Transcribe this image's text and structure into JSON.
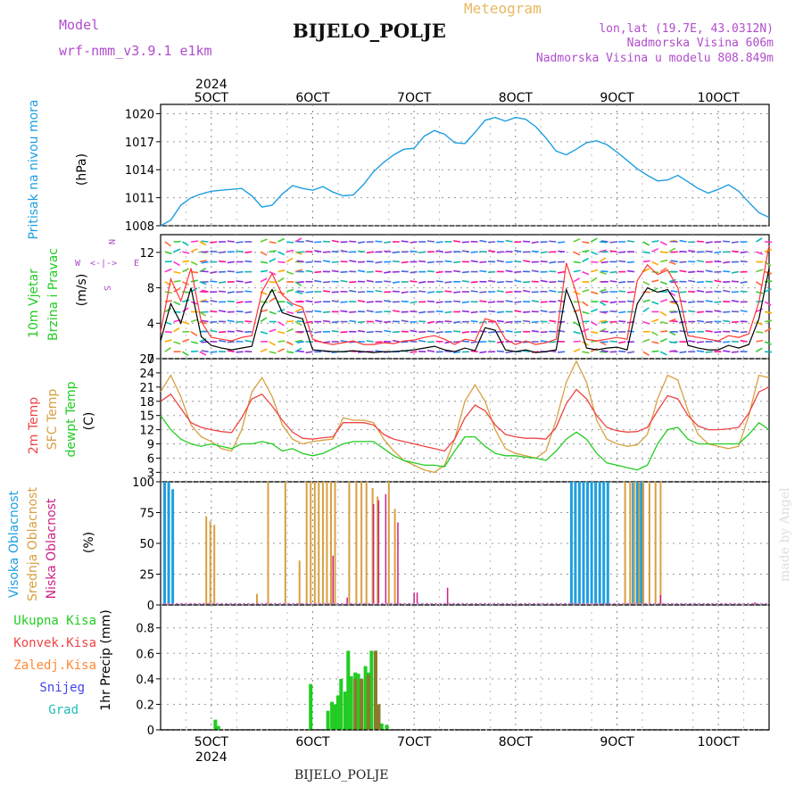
{
  "header": {
    "model_label": "Model",
    "model_name": "wrf-nmm_v3.9.1  e1km",
    "station": "BIJELO_POLJE",
    "meteogram_label": "Meteogram",
    "lonlat": "lon,lat (19.7E, 43.0312N)",
    "altitude": "Nadmorska Visina 606m",
    "model_altitude": "Nadmorska Visina u modelu 808.849m",
    "watermark": "made by Angel",
    "footer_station": "BIJELO_POLJE"
  },
  "colors": {
    "pressure": "#1e9fe0",
    "temp2m": "#ee4444",
    "sfc_temp": "#d8a040",
    "dewpoint": "#22cc22",
    "high_cloud": "#1e9fe0",
    "mid_cloud": "#d8a040",
    "low_cloud": "#cc2288",
    "total_precip": "#22cc22",
    "conv_precip": "#ee4444",
    "frozen_precip": "#ff8833",
    "snow": "#4444ee",
    "graupel": "#22bbbb",
    "header_purple": "#b04ccc",
    "header_orange": "#e8b860"
  },
  "chart_data": [
    {
      "type": "line",
      "panel": "pressure",
      "ylabel": [
        "Pritisak na nivou mora",
        "(hPa)"
      ],
      "ylim": [
        1008,
        1021
      ],
      "yticks": [
        1008,
        1011,
        1014,
        1017,
        1020
      ],
      "x_day_ticks": [
        "5OCT",
        "6OCT",
        "7OCT",
        "8OCT",
        "9OCT",
        "10OCT"
      ],
      "x_top_year": "2024",
      "x": [
        4.5,
        4.6,
        4.7,
        4.8,
        4.9,
        5.0,
        5.1,
        5.2,
        5.3,
        5.4,
        5.5,
        5.6,
        5.7,
        5.8,
        5.9,
        6.0,
        6.1,
        6.2,
        6.3,
        6.4,
        6.5,
        6.6,
        6.7,
        6.8,
        6.9,
        7.0,
        7.1,
        7.2,
        7.3,
        7.4,
        7.5,
        7.6,
        7.7,
        7.8,
        7.9,
        8.0,
        8.1,
        8.2,
        8.3,
        8.4,
        8.5,
        8.6,
        8.7,
        8.8,
        8.9,
        9.0,
        9.1,
        9.2,
        9.3,
        9.4,
        9.5,
        9.6,
        9.7,
        9.8,
        9.9,
        10.0,
        10.1,
        10.2,
        10.3,
        10.4,
        10.5
      ],
      "values": [
        1008.0,
        1008.6,
        1010.2,
        1011.0,
        1011.4,
        1011.7,
        1011.8,
        1011.9,
        1012.0,
        1011.2,
        1010.0,
        1010.2,
        1011.4,
        1012.3,
        1012.0,
        1011.8,
        1012.2,
        1011.6,
        1011.2,
        1011.3,
        1012.4,
        1013.8,
        1014.8,
        1015.6,
        1016.2,
        1016.3,
        1017.6,
        1018.2,
        1017.8,
        1016.9,
        1016.8,
        1018.0,
        1019.3,
        1019.6,
        1019.2,
        1019.6,
        1019.4,
        1018.6,
        1017.4,
        1016.0,
        1015.6,
        1016.2,
        1016.9,
        1017.1,
        1016.7,
        1015.9,
        1015.0,
        1014.1,
        1013.4,
        1012.8,
        1012.9,
        1013.4,
        1012.7,
        1012.0,
        1011.5,
        1011.9,
        1012.4,
        1011.7,
        1010.5,
        1009.4,
        1008.9
      ]
    },
    {
      "type": "line",
      "panel": "wind",
      "ylabel": [
        "10m Vjetar",
        "Brzina i Pravac",
        "(m/s)"
      ],
      "compass": [
        "N",
        "E",
        "S",
        "W"
      ],
      "ylim": [
        0,
        14
      ],
      "yticks": [
        0,
        4,
        8,
        12
      ],
      "x": [
        4.5,
        4.6,
        4.7,
        4.8,
        4.9,
        5.0,
        5.1,
        5.2,
        5.3,
        5.4,
        5.5,
        5.6,
        5.7,
        5.8,
        5.9,
        6.0,
        6.1,
        6.2,
        6.3,
        6.4,
        6.5,
        6.6,
        6.7,
        6.8,
        6.9,
        7.0,
        7.1,
        7.2,
        7.3,
        7.4,
        7.5,
        7.6,
        7.7,
        7.8,
        7.9,
        8.0,
        8.1,
        8.2,
        8.3,
        8.4,
        8.5,
        8.6,
        8.7,
        8.8,
        8.9,
        9.0,
        9.1,
        9.2,
        9.3,
        9.4,
        9.5,
        9.6,
        9.7,
        9.8,
        9.9,
        10.0,
        10.1,
        10.2,
        10.3,
        10.4,
        10.5
      ],
      "series": [
        {
          "name": "speed",
          "values": [
            2.0,
            6.2,
            4.0,
            8.0,
            2.5,
            1.5,
            1.2,
            1.0,
            1.2,
            1.4,
            5.8,
            7.8,
            5.2,
            4.8,
            4.5,
            1.0,
            0.9,
            0.8,
            0.8,
            0.9,
            0.8,
            0.7,
            0.8,
            0.8,
            0.9,
            1.0,
            1.2,
            1.4,
            1.0,
            0.8,
            1.2,
            0.9,
            3.5,
            3.2,
            1.0,
            0.8,
            1.0,
            0.7,
            0.8,
            1.0,
            7.8,
            5.0,
            1.2,
            1.0,
            1.2,
            1.3,
            1.0,
            6.2,
            8.0,
            7.5,
            7.8,
            6.0,
            1.5,
            1.2,
            1.0,
            1.0,
            1.5,
            1.2,
            1.6,
            4.5,
            10.2
          ]
        },
        {
          "name": "gust",
          "values": [
            3.0,
            9.0,
            6.5,
            10.2,
            4.2,
            2.4,
            2.2,
            2.0,
            2.4,
            2.6,
            7.6,
            9.6,
            7.2,
            6.2,
            5.8,
            2.2,
            1.8,
            1.6,
            1.8,
            2.0,
            1.6,
            1.6,
            1.8,
            1.7,
            2.0,
            2.1,
            2.4,
            2.6,
            2.2,
            1.6,
            2.2,
            2.0,
            4.5,
            4.2,
            2.2,
            1.6,
            2.0,
            1.6,
            1.8,
            2.2,
            10.8,
            7.4,
            2.2,
            2.0,
            2.2,
            2.4,
            2.2,
            8.8,
            10.6,
            9.5,
            10.0,
            8.0,
            2.6,
            2.4,
            2.2,
            2.0,
            2.6,
            2.4,
            2.8,
            6.4,
            12.8
          ]
        }
      ]
    },
    {
      "type": "line",
      "panel": "temperature",
      "ylabel": [
        "2m Temp",
        "SFC Temp",
        "dewpt Temp",
        "(C)"
      ],
      "ylim": [
        1,
        27
      ],
      "yticks": [
        3,
        6,
        9,
        12,
        15,
        18,
        21,
        24,
        27
      ],
      "x": [
        4.5,
        4.6,
        4.7,
        4.8,
        4.9,
        5.0,
        5.1,
        5.2,
        5.3,
        5.4,
        5.5,
        5.6,
        5.7,
        5.8,
        5.9,
        6.0,
        6.1,
        6.2,
        6.3,
        6.4,
        6.5,
        6.6,
        6.7,
        6.8,
        6.9,
        7.0,
        7.1,
        7.2,
        7.3,
        7.4,
        7.5,
        7.6,
        7.7,
        7.8,
        7.9,
        8.0,
        8.1,
        8.2,
        8.3,
        8.4,
        8.5,
        8.6,
        8.7,
        8.8,
        8.9,
        9.0,
        9.1,
        9.2,
        9.3,
        9.4,
        9.5,
        9.6,
        9.7,
        9.8,
        9.9,
        10.0,
        10.1,
        10.2,
        10.3,
        10.4,
        10.5
      ],
      "series": [
        {
          "name": "2m Temp",
          "values": [
            18,
            19.5,
            16.5,
            13.5,
            12.5,
            12.0,
            11.6,
            11.4,
            14.5,
            18.5,
            19.5,
            17.0,
            14.0,
            11.5,
            10.2,
            10.0,
            10.3,
            10.5,
            13.5,
            13.5,
            13.5,
            13.0,
            11.0,
            10.0,
            9.5,
            9.0,
            8.5,
            8.0,
            7.5,
            10.0,
            14.5,
            17.2,
            16.0,
            13.0,
            11.0,
            10.5,
            10.2,
            10.2,
            10.0,
            12.5,
            17.5,
            20.5,
            18.5,
            15.0,
            12.5,
            11.8,
            11.5,
            11.6,
            12.5,
            16.0,
            19.2,
            18.5,
            15.0,
            12.8,
            12.0,
            12.0,
            12.2,
            12.5,
            15.5,
            20.0,
            21.0
          ]
        },
        {
          "name": "SFC Temp",
          "values": [
            20,
            23.5,
            19,
            13,
            10.5,
            9.5,
            8,
            7.5,
            12,
            20,
            23,
            19,
            13,
            10,
            9,
            9.5,
            9.8,
            10,
            14.5,
            14.0,
            14.0,
            13.5,
            10,
            7.5,
            5.5,
            4.5,
            3.5,
            3.0,
            4.5,
            10,
            18,
            21.5,
            18,
            12,
            8,
            7,
            6.5,
            6.0,
            7.5,
            14,
            22,
            26.5,
            22,
            14,
            10,
            9,
            8.5,
            8.8,
            11,
            18.5,
            23.5,
            22.5,
            16,
            11,
            9,
            8.5,
            8,
            8.5,
            15,
            23.5,
            23
          ]
        },
        {
          "name": "dewpt Temp",
          "values": [
            15,
            12,
            10,
            9,
            8.5,
            9,
            8.5,
            8,
            9,
            9,
            9.5,
            9.0,
            7.5,
            8,
            7,
            6.5,
            7,
            8,
            9,
            9.5,
            9.5,
            9.5,
            8,
            6.5,
            5.5,
            5,
            4.5,
            4.5,
            4.2,
            7.5,
            10.5,
            10.5,
            8.5,
            7,
            6.5,
            6.5,
            6.2,
            6.0,
            5.5,
            7.5,
            10,
            11.5,
            10,
            7,
            5,
            4.5,
            4.0,
            3.5,
            4.5,
            9,
            12.0,
            12.5,
            10,
            9,
            9,
            9,
            9,
            9,
            11,
            13.5,
            12
          ]
        }
      ]
    },
    {
      "type": "bar",
      "panel": "cloud",
      "ylabel": [
        "Visoka Oblacnost",
        "Srednja Oblacnost",
        "Niska Oblacnost",
        "(%)"
      ],
      "ylim": [
        0,
        100
      ],
      "yticks": [
        0,
        25,
        50,
        75,
        100
      ],
      "series": [
        {
          "name": "Visoka Oblacnost",
          "x": [
            4.54,
            4.58,
            4.62,
            8.55,
            8.59,
            8.63,
            8.67,
            8.71,
            8.75,
            8.79,
            8.83,
            8.87,
            8.91,
            9.16,
            9.2,
            9.24
          ],
          "values": [
            100,
            100,
            94,
            100,
            100,
            100,
            100,
            100,
            100,
            100,
            100,
            100,
            100,
            100,
            100,
            100
          ]
        },
        {
          "name": "Srednja Oblacnost",
          "x": [
            4.95,
            4.99,
            5.03,
            5.45,
            5.56,
            5.73,
            5.87,
            5.94,
            5.98,
            6.02,
            6.06,
            6.1,
            6.14,
            6.18,
            6.22,
            6.36,
            6.43,
            6.48,
            6.53,
            6.59,
            6.64,
            6.75,
            6.81,
            9.08,
            9.13,
            9.17,
            9.22,
            9.26,
            9.32,
            9.38,
            9.43
          ],
          "values": [
            72,
            68,
            65,
            9,
            100,
            100,
            36,
            100,
            100,
            100,
            100,
            100,
            100,
            100,
            100,
            100,
            100,
            100,
            100,
            95,
            88,
            100,
            78,
            100,
            100,
            100,
            100,
            100,
            100,
            100,
            100
          ]
        },
        {
          "name": "Niska Oblacnost",
          "x": [
            6.2,
            6.34,
            6.6,
            6.65,
            6.72,
            6.84,
            7.0,
            7.03,
            7.33,
            9.43,
            10.36
          ],
          "values": [
            40,
            6,
            82,
            85,
            90,
            67,
            10,
            10,
            14,
            8,
            2
          ]
        }
      ]
    },
    {
      "type": "bar",
      "panel": "precip",
      "ylabel": [
        "1hr Precip (mm)"
      ],
      "legend": [
        "Ukupna Kisa",
        "Konvek.Kisa",
        "Zaledj.Kisa",
        "Snijeg",
        "Grad"
      ],
      "ylim": [
        0,
        0.98
      ],
      "yticks": [
        0,
        0.2,
        0.4,
        0.6,
        0.8
      ],
      "x_day_ticks": [
        "5OCT",
        "6OCT",
        "7OCT",
        "8OCT",
        "9OCT",
        "10OCT"
      ],
      "x_bottom_year": "2024",
      "series": [
        {
          "name": "Ukupna Kisa",
          "x": [
            5.04,
            5.07,
            5.98,
            6.15,
            6.19,
            6.22,
            6.25,
            6.28,
            6.32,
            6.35,
            6.38,
            6.42,
            6.45,
            6.48,
            6.52,
            6.55,
            6.58,
            6.62,
            6.65,
            6.68,
            6.73
          ],
          "values": [
            0.08,
            0.03,
            0.36,
            0.15,
            0.22,
            0.2,
            0.27,
            0.4,
            0.3,
            0.62,
            0.42,
            0.45,
            0.44,
            0.4,
            0.5,
            0.45,
            0.62,
            0.62,
            0.2,
            0.05,
            0.04
          ]
        },
        {
          "name": "Zaledj.Kisa",
          "x": [
            6.42,
            6.48,
            6.55,
            6.62,
            6.65
          ],
          "values": [
            0.4,
            0.4,
            0.43,
            0.62,
            0.2
          ]
        }
      ]
    }
  ]
}
